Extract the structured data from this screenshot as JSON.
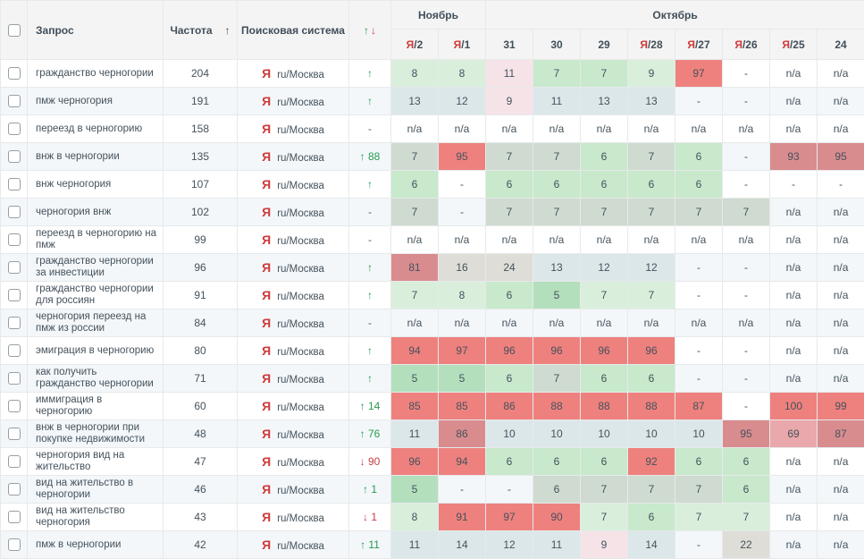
{
  "labels": {
    "dash": "-",
    "na": "n/a"
  },
  "colors": {
    "yandex_red": "#cf3a3a",
    "up_green": "#279a4d",
    "down_red": "#c43d46",
    "header_bg": "#f4f4f4",
    "stripe_bg": "#f3f7fa",
    "cell_palette": {
      "g1": "#b4dfbd",
      "g2": "#c8e9cc",
      "g3": "#d9efdc",
      "gg": "#cfdbd0",
      "bg": "#dce7ea",
      "pk": "#f6e3e8",
      "gy": "#dfddd7",
      "r1": "#ee817e",
      "r2": "#d98c8e",
      "r3": "#e9a8ab"
    }
  },
  "header": {
    "query": "Запрос",
    "frequency": "Частота",
    "frequency_sort_icon": "↑",
    "search_engine": "Поисковая система",
    "change_up_icon": "↑",
    "change_down_icon": "↓",
    "month_groups": [
      {
        "label": "Ноябрь",
        "colspan": 2
      },
      {
        "label": "Октябрь",
        "colspan": 8
      }
    ],
    "date_columns": [
      {
        "prefix": "Я",
        "day": "2"
      },
      {
        "prefix": "Я",
        "day": "1"
      },
      {
        "prefix": "",
        "day": "31"
      },
      {
        "prefix": "",
        "day": "30"
      },
      {
        "prefix": "",
        "day": "29"
      },
      {
        "prefix": "Я",
        "day": "28"
      },
      {
        "prefix": "Я",
        "day": "27"
      },
      {
        "prefix": "Я",
        "day": "26"
      },
      {
        "prefix": "Я",
        "day": "25"
      },
      {
        "prefix": "",
        "day": "24"
      }
    ]
  },
  "engine": {
    "icon_letter": "Я",
    "region": "ru/Москва"
  },
  "rows": [
    {
      "query": "гражданство черногории",
      "frequency": "204",
      "change": {
        "dir": "up",
        "value": ""
      },
      "positions": [
        {
          "v": "8",
          "c": "g3"
        },
        {
          "v": "8",
          "c": "g3"
        },
        {
          "v": "11",
          "c": "pk"
        },
        {
          "v": "7",
          "c": "g2"
        },
        {
          "v": "7",
          "c": "g2"
        },
        {
          "v": "9",
          "c": "g3"
        },
        {
          "v": "97",
          "c": "r1"
        },
        {
          "v": "-",
          "c": ""
        },
        {
          "v": "n/a",
          "c": ""
        },
        {
          "v": "n/a",
          "c": ""
        }
      ]
    },
    {
      "query": "пмж черногория",
      "frequency": "191",
      "change": {
        "dir": "up",
        "value": ""
      },
      "positions": [
        {
          "v": "13",
          "c": "bg"
        },
        {
          "v": "12",
          "c": "bg"
        },
        {
          "v": "9",
          "c": "pk"
        },
        {
          "v": "11",
          "c": "bg"
        },
        {
          "v": "13",
          "c": "bg"
        },
        {
          "v": "13",
          "c": "bg"
        },
        {
          "v": "-",
          "c": ""
        },
        {
          "v": "-",
          "c": ""
        },
        {
          "v": "n/a",
          "c": ""
        },
        {
          "v": "n/a",
          "c": ""
        }
      ]
    },
    {
      "query": "переезд в черногорию",
      "frequency": "158",
      "change": {
        "dir": "none",
        "value": ""
      },
      "positions": [
        {
          "v": "n/a",
          "c": ""
        },
        {
          "v": "n/a",
          "c": ""
        },
        {
          "v": "n/a",
          "c": ""
        },
        {
          "v": "n/a",
          "c": ""
        },
        {
          "v": "n/a",
          "c": ""
        },
        {
          "v": "n/a",
          "c": ""
        },
        {
          "v": "n/a",
          "c": ""
        },
        {
          "v": "n/a",
          "c": ""
        },
        {
          "v": "n/a",
          "c": ""
        },
        {
          "v": "n/a",
          "c": ""
        }
      ]
    },
    {
      "query": "внж в черногории",
      "frequency": "135",
      "change": {
        "dir": "up",
        "value": "88"
      },
      "positions": [
        {
          "v": "7",
          "c": "gg"
        },
        {
          "v": "95",
          "c": "r1"
        },
        {
          "v": "7",
          "c": "gg"
        },
        {
          "v": "7",
          "c": "gg"
        },
        {
          "v": "6",
          "c": "g2"
        },
        {
          "v": "7",
          "c": "gg"
        },
        {
          "v": "6",
          "c": "g2"
        },
        {
          "v": "-",
          "c": ""
        },
        {
          "v": "93",
          "c": "r2"
        },
        {
          "v": "95",
          "c": "r2"
        }
      ]
    },
    {
      "query": "внж черногория",
      "frequency": "107",
      "change": {
        "dir": "up",
        "value": ""
      },
      "positions": [
        {
          "v": "6",
          "c": "g2"
        },
        {
          "v": "-",
          "c": ""
        },
        {
          "v": "6",
          "c": "g2"
        },
        {
          "v": "6",
          "c": "g2"
        },
        {
          "v": "6",
          "c": "g2"
        },
        {
          "v": "6",
          "c": "g2"
        },
        {
          "v": "6",
          "c": "g2"
        },
        {
          "v": "-",
          "c": ""
        },
        {
          "v": "-",
          "c": ""
        },
        {
          "v": "-",
          "c": ""
        }
      ]
    },
    {
      "query": "черногория внж",
      "frequency": "102",
      "change": {
        "dir": "none",
        "value": ""
      },
      "positions": [
        {
          "v": "7",
          "c": "gg"
        },
        {
          "v": "-",
          "c": ""
        },
        {
          "v": "7",
          "c": "gg"
        },
        {
          "v": "7",
          "c": "gg"
        },
        {
          "v": "7",
          "c": "gg"
        },
        {
          "v": "7",
          "c": "gg"
        },
        {
          "v": "7",
          "c": "gg"
        },
        {
          "v": "7",
          "c": "gg"
        },
        {
          "v": "n/a",
          "c": ""
        },
        {
          "v": "n/a",
          "c": ""
        }
      ]
    },
    {
      "query": "переезд в черногорию на пмж",
      "frequency": "99",
      "change": {
        "dir": "none",
        "value": ""
      },
      "positions": [
        {
          "v": "n/a",
          "c": ""
        },
        {
          "v": "n/a",
          "c": ""
        },
        {
          "v": "n/a",
          "c": ""
        },
        {
          "v": "n/a",
          "c": ""
        },
        {
          "v": "n/a",
          "c": ""
        },
        {
          "v": "n/a",
          "c": ""
        },
        {
          "v": "n/a",
          "c": ""
        },
        {
          "v": "n/a",
          "c": ""
        },
        {
          "v": "n/a",
          "c": ""
        },
        {
          "v": "n/a",
          "c": ""
        }
      ]
    },
    {
      "query": "гражданство черногории за инвестиции",
      "frequency": "96",
      "change": {
        "dir": "up",
        "value": ""
      },
      "positions": [
        {
          "v": "81",
          "c": "r2"
        },
        {
          "v": "16",
          "c": "gy"
        },
        {
          "v": "24",
          "c": "gy"
        },
        {
          "v": "13",
          "c": "bg"
        },
        {
          "v": "12",
          "c": "bg"
        },
        {
          "v": "12",
          "c": "bg"
        },
        {
          "v": "-",
          "c": ""
        },
        {
          "v": "-",
          "c": ""
        },
        {
          "v": "n/a",
          "c": ""
        },
        {
          "v": "n/a",
          "c": ""
        }
      ]
    },
    {
      "query": "гражданство черногории для россиян",
      "frequency": "91",
      "change": {
        "dir": "up",
        "value": ""
      },
      "positions": [
        {
          "v": "7",
          "c": "g3"
        },
        {
          "v": "8",
          "c": "g3"
        },
        {
          "v": "6",
          "c": "g2"
        },
        {
          "v": "5",
          "c": "g1"
        },
        {
          "v": "7",
          "c": "g3"
        },
        {
          "v": "7",
          "c": "g3"
        },
        {
          "v": "-",
          "c": ""
        },
        {
          "v": "-",
          "c": ""
        },
        {
          "v": "n/a",
          "c": ""
        },
        {
          "v": "n/a",
          "c": ""
        }
      ]
    },
    {
      "query": "черногория переезд на пмж из россии",
      "frequency": "84",
      "change": {
        "dir": "none",
        "value": ""
      },
      "positions": [
        {
          "v": "n/a",
          "c": ""
        },
        {
          "v": "n/a",
          "c": ""
        },
        {
          "v": "n/a",
          "c": ""
        },
        {
          "v": "n/a",
          "c": ""
        },
        {
          "v": "n/a",
          "c": ""
        },
        {
          "v": "n/a",
          "c": ""
        },
        {
          "v": "n/a",
          "c": ""
        },
        {
          "v": "n/a",
          "c": ""
        },
        {
          "v": "n/a",
          "c": ""
        },
        {
          "v": "n/a",
          "c": ""
        }
      ]
    },
    {
      "query": "эмиграция в черногорию",
      "frequency": "80",
      "change": {
        "dir": "up",
        "value": ""
      },
      "positions": [
        {
          "v": "94",
          "c": "r1"
        },
        {
          "v": "97",
          "c": "r1"
        },
        {
          "v": "96",
          "c": "r1"
        },
        {
          "v": "96",
          "c": "r1"
        },
        {
          "v": "96",
          "c": "r1"
        },
        {
          "v": "96",
          "c": "r1"
        },
        {
          "v": "-",
          "c": ""
        },
        {
          "v": "-",
          "c": ""
        },
        {
          "v": "n/a",
          "c": ""
        },
        {
          "v": "n/a",
          "c": ""
        }
      ]
    },
    {
      "query": "как получить гражданство черногории",
      "frequency": "71",
      "change": {
        "dir": "up",
        "value": ""
      },
      "positions": [
        {
          "v": "5",
          "c": "g1"
        },
        {
          "v": "5",
          "c": "g1"
        },
        {
          "v": "6",
          "c": "g2"
        },
        {
          "v": "7",
          "c": "gg"
        },
        {
          "v": "6",
          "c": "g2"
        },
        {
          "v": "6",
          "c": "g2"
        },
        {
          "v": "-",
          "c": ""
        },
        {
          "v": "-",
          "c": ""
        },
        {
          "v": "n/a",
          "c": ""
        },
        {
          "v": "n/a",
          "c": ""
        }
      ]
    },
    {
      "query": "иммиграция в черногорию",
      "frequency": "60",
      "change": {
        "dir": "up",
        "value": "14"
      },
      "positions": [
        {
          "v": "85",
          "c": "r1"
        },
        {
          "v": "85",
          "c": "r1"
        },
        {
          "v": "86",
          "c": "r1"
        },
        {
          "v": "88",
          "c": "r1"
        },
        {
          "v": "88",
          "c": "r1"
        },
        {
          "v": "88",
          "c": "r1"
        },
        {
          "v": "87",
          "c": "r1"
        },
        {
          "v": "-",
          "c": ""
        },
        {
          "v": "100",
          "c": "r1"
        },
        {
          "v": "99",
          "c": "r1"
        }
      ]
    },
    {
      "query": "внж в черногории при покупке недвижимости",
      "frequency": "48",
      "change": {
        "dir": "up",
        "value": "76"
      },
      "positions": [
        {
          "v": "11",
          "c": "bg"
        },
        {
          "v": "86",
          "c": "r2"
        },
        {
          "v": "10",
          "c": "bg"
        },
        {
          "v": "10",
          "c": "bg"
        },
        {
          "v": "10",
          "c": "bg"
        },
        {
          "v": "10",
          "c": "bg"
        },
        {
          "v": "10",
          "c": "bg"
        },
        {
          "v": "95",
          "c": "r2"
        },
        {
          "v": "69",
          "c": "r3"
        },
        {
          "v": "87",
          "c": "r2"
        }
      ]
    },
    {
      "query": "черногория вид на жительство",
      "frequency": "47",
      "change": {
        "dir": "down",
        "value": "90"
      },
      "positions": [
        {
          "v": "96",
          "c": "r1"
        },
        {
          "v": "94",
          "c": "r1"
        },
        {
          "v": "6",
          "c": "g2"
        },
        {
          "v": "6",
          "c": "g2"
        },
        {
          "v": "6",
          "c": "g2"
        },
        {
          "v": "92",
          "c": "r1"
        },
        {
          "v": "6",
          "c": "g2"
        },
        {
          "v": "6",
          "c": "g2"
        },
        {
          "v": "n/a",
          "c": ""
        },
        {
          "v": "n/a",
          "c": ""
        }
      ]
    },
    {
      "query": "вид на жительство в черногории",
      "frequency": "46",
      "change": {
        "dir": "up",
        "value": "1"
      },
      "positions": [
        {
          "v": "5",
          "c": "g1"
        },
        {
          "v": "-",
          "c": ""
        },
        {
          "v": "-",
          "c": ""
        },
        {
          "v": "6",
          "c": "gg"
        },
        {
          "v": "7",
          "c": "gg"
        },
        {
          "v": "7",
          "c": "gg"
        },
        {
          "v": "7",
          "c": "gg"
        },
        {
          "v": "6",
          "c": "g2"
        },
        {
          "v": "n/a",
          "c": ""
        },
        {
          "v": "n/a",
          "c": ""
        }
      ]
    },
    {
      "query": "вид на жительство черногория",
      "frequency": "43",
      "change": {
        "dir": "down",
        "value": "1"
      },
      "positions": [
        {
          "v": "8",
          "c": "g3"
        },
        {
          "v": "91",
          "c": "r1"
        },
        {
          "v": "97",
          "c": "r1"
        },
        {
          "v": "90",
          "c": "r1"
        },
        {
          "v": "7",
          "c": "g3"
        },
        {
          "v": "6",
          "c": "g2"
        },
        {
          "v": "7",
          "c": "g3"
        },
        {
          "v": "7",
          "c": "g3"
        },
        {
          "v": "n/a",
          "c": ""
        },
        {
          "v": "n/a",
          "c": ""
        }
      ]
    },
    {
      "query": "пмж в черногории",
      "frequency": "42",
      "change": {
        "dir": "up",
        "value": "11"
      },
      "positions": [
        {
          "v": "11",
          "c": "bg"
        },
        {
          "v": "14",
          "c": "bg"
        },
        {
          "v": "12",
          "c": "bg"
        },
        {
          "v": "11",
          "c": "bg"
        },
        {
          "v": "9",
          "c": "pk"
        },
        {
          "v": "14",
          "c": "bg"
        },
        {
          "v": "-",
          "c": ""
        },
        {
          "v": "22",
          "c": "gy"
        },
        {
          "v": "n/a",
          "c": ""
        },
        {
          "v": "n/a",
          "c": ""
        }
      ]
    }
  ]
}
